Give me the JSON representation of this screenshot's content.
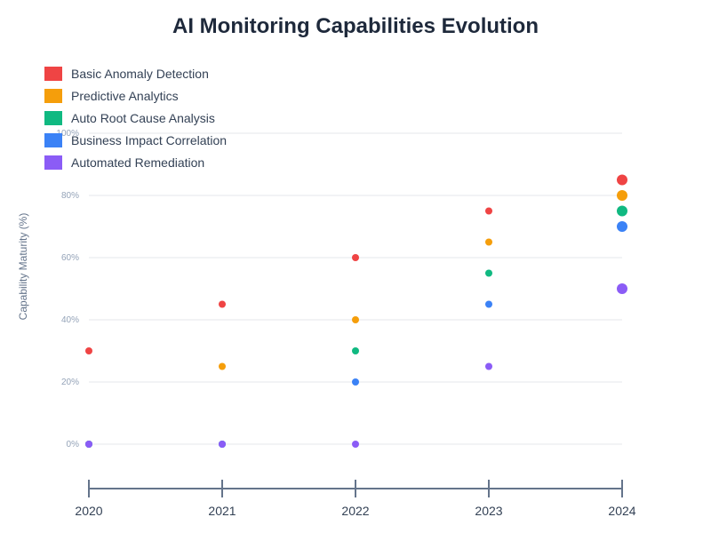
{
  "chart_data": {
    "type": "scatter",
    "title": "AI Monitoring Capabilities Evolution",
    "xlabel": "",
    "ylabel": "Capability Maturity (%)",
    "x": [
      "2020",
      "2021",
      "2022",
      "2023",
      "2024"
    ],
    "ylim": [
      0,
      100
    ],
    "yticks": [
      "0%",
      "20%",
      "40%",
      "60%",
      "80%",
      "100%"
    ],
    "grid": true,
    "legend_position": "top-left",
    "series": [
      {
        "name": "Basic Anomaly Detection",
        "color": "#ef4444",
        "values": [
          30,
          45,
          60,
          75,
          85
        ]
      },
      {
        "name": "Predictive Analytics",
        "color": "#f59e0b",
        "values": [
          0,
          25,
          40,
          65,
          80
        ]
      },
      {
        "name": "Auto Root Cause Analysis",
        "color": "#10b981",
        "values": [
          0,
          0,
          30,
          55,
          75
        ]
      },
      {
        "name": "Business Impact Correlation",
        "color": "#3b82f6",
        "values": [
          0,
          0,
          20,
          45,
          70
        ]
      },
      {
        "name": "Automated Remediation",
        "color": "#8b5cf6",
        "values": [
          0,
          0,
          0,
          25,
          50
        ]
      }
    ]
  }
}
